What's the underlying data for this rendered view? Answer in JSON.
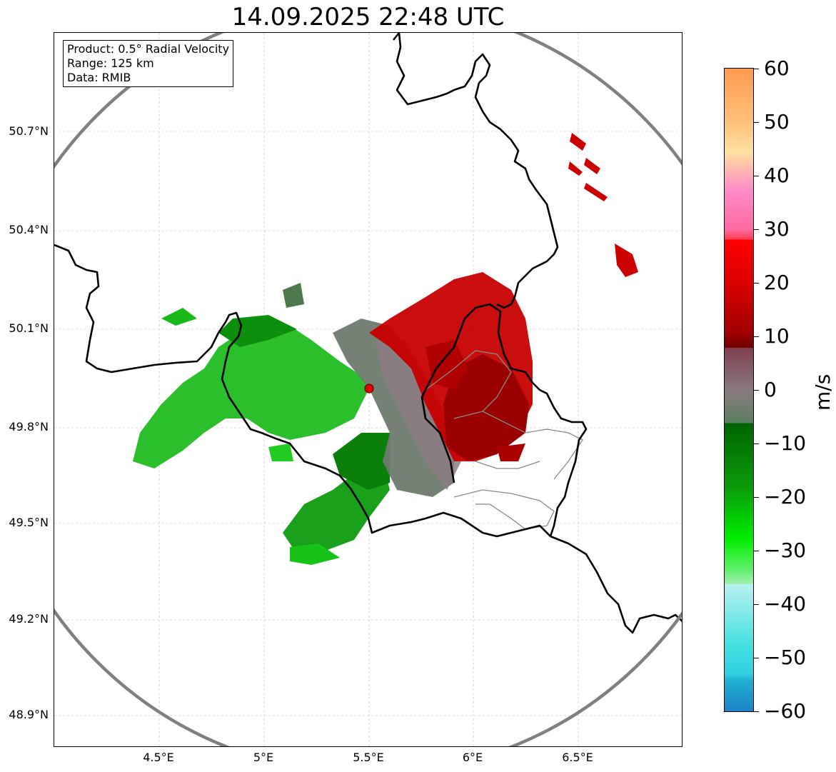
{
  "title": "14.09.2025 22:48 UTC",
  "info": {
    "product": "Product: 0.5° Radial Velocity",
    "range": "Range: 125 km",
    "source": "Data: RMIB"
  },
  "axes": {
    "y_ticks": [
      "50.7°N",
      "50.4°N",
      "50.1°N",
      "49.8°N",
      "49.5°N",
      "49.2°N",
      "48.9°N"
    ],
    "x_ticks": [
      "4.5°E",
      "5°E",
      "5.5°E",
      "6°E",
      "6.5°E"
    ]
  },
  "colorbar": {
    "label": "m/s",
    "ticks": [
      "60",
      "50",
      "40",
      "30",
      "20",
      "10",
      "0",
      "−10",
      "−20",
      "−30",
      "−40",
      "−50",
      "−60"
    ],
    "range": [
      -60,
      60
    ]
  },
  "colors": {
    "inbound_green": "#0a9a0a",
    "outbound_red": "#c20000",
    "near_zero": "#8a7a80",
    "range_ring": "#808080",
    "radar_site": "#e00000"
  }
}
